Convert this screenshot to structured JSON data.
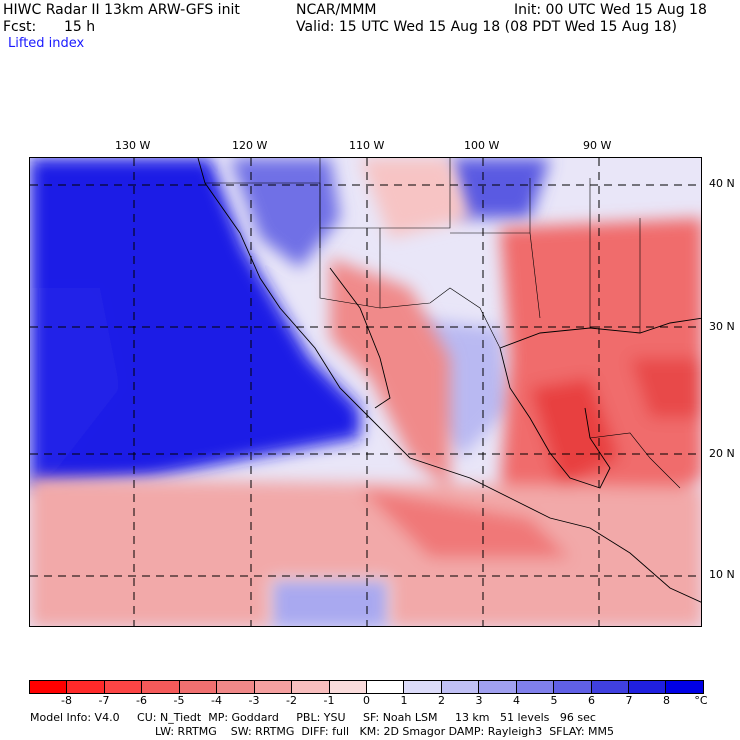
{
  "header": {
    "left_line1": "HIWC Radar II 13km ARW-GFS init",
    "left_line2_label": "Fcst:",
    "left_line2_value": "15 h",
    "center_line1": "NCAR/MMM",
    "init": "Init: 00 UTC Wed 15 Aug 18",
    "valid": "Valid: 15 UTC Wed 15 Aug 18 (08 PDT Wed 15 Aug 18)",
    "field_name": "Lifted index"
  },
  "map": {
    "longitude_labels": [
      "130 W",
      "120 W",
      "110 W",
      "100 W",
      "90 W"
    ],
    "latitude_labels": [
      "40 N",
      "30 N",
      "20 N",
      "10 N"
    ],
    "ocean_color": "#1414e6",
    "unstable_color": "#f05a5a"
  },
  "colorbar": {
    "ticks": [
      "-8",
      "-7",
      "-6",
      "-5",
      "-4",
      "-3",
      "-2",
      "-1",
      "0",
      "1",
      "2",
      "3",
      "4",
      "5",
      "6",
      "7",
      "8"
    ],
    "unit": "°C",
    "colors": [
      "#ff0000",
      "#ff2a2a",
      "#fc4545",
      "#f55a5a",
      "#f07070",
      "#f08888",
      "#f5a0a0",
      "#f8bebe",
      "#fadcdc",
      "#ffffff",
      "#dcdcfa",
      "#c0c0f5",
      "#a0a0f0",
      "#8080ec",
      "#6060e6",
      "#4040e0",
      "#2020e0",
      "#0000e6"
    ]
  },
  "model_info": {
    "line1": "Model Info: V4.0     CU: N_Tiedt  MP: Goddard     PBL: YSU     SF: Noah LSM     13 km   51 levels   96 sec",
    "line2": "LW: RRTMG    SW: RRTMG  DIFF: full   KM: 2D Smagor DAMP: Rayleigh3  SFLAY: MM5"
  }
}
